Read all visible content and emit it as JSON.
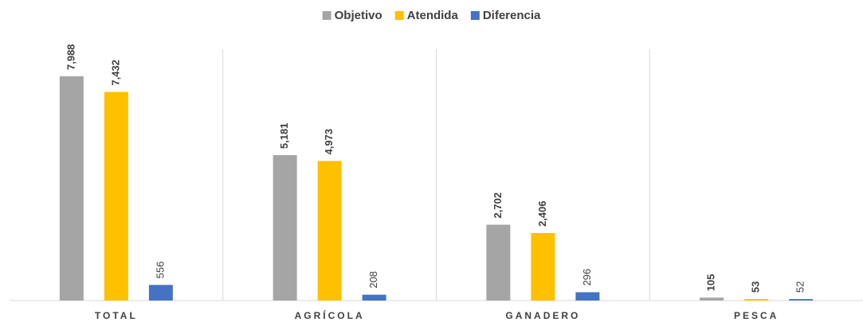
{
  "chart_data": {
    "type": "bar",
    "categories": [
      "TOTAL",
      "AGRÍCOLA",
      "GANADERO",
      "PESCA"
    ],
    "series": [
      {
        "name": "Objetivo",
        "color": "#a5a5a5",
        "values": [
          7988,
          5181,
          2702,
          105
        ],
        "value_labels": [
          "7,988",
          "5,181",
          "2,702",
          "105"
        ]
      },
      {
        "name": "Atendida",
        "color": "#ffc000",
        "values": [
          7432,
          4973,
          2406,
          53
        ],
        "value_labels": [
          "7,432",
          "4,973",
          "2,406",
          "53"
        ]
      },
      {
        "name": "Diferencia",
        "color": "#4472c4",
        "values": [
          556,
          208,
          296,
          52
        ]
      }
    ],
    "legend": "top"
  }
}
